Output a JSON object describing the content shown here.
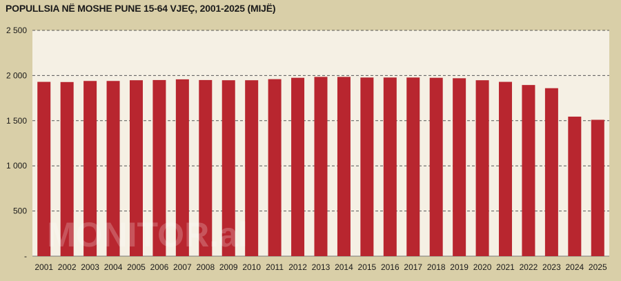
{
  "chart_data": {
    "type": "bar",
    "title": "POPULLSIA NË MOSHE PUNE 15-64 VJEÇ, 2001-2025 (MIJË)",
    "xlabel": "",
    "ylabel": "",
    "categories": [
      "2001",
      "2002",
      "2003",
      "2004",
      "2005",
      "2006",
      "2007",
      "2008",
      "2009",
      "2010",
      "2011",
      "2012",
      "2013",
      "2014",
      "2015",
      "2016",
      "2017",
      "2018",
      "2019",
      "2020",
      "2021",
      "2022",
      "2023",
      "2024",
      "2025"
    ],
    "values": [
      1930,
      1928,
      1940,
      1940,
      1948,
      1950,
      1958,
      1950,
      1948,
      1948,
      1960,
      1975,
      1985,
      1985,
      1978,
      1978,
      1978,
      1975,
      1970,
      1948,
      1930,
      1895,
      1860,
      1545,
      1510
    ],
    "ylim": [
      0,
      2500
    ],
    "yticks": [
      0,
      500,
      1000,
      1500,
      2000,
      2500
    ],
    "ytick_labels": [
      "-",
      "500",
      "1 000",
      "1 500",
      "2 000",
      "2 500"
    ],
    "grid": "dashed horizontal",
    "legend": "none",
    "bar_color": "#b8262f",
    "plot_background": "#f5f0e4",
    "page_background": "#d9cfa8"
  },
  "watermark": "MONITOR.al"
}
